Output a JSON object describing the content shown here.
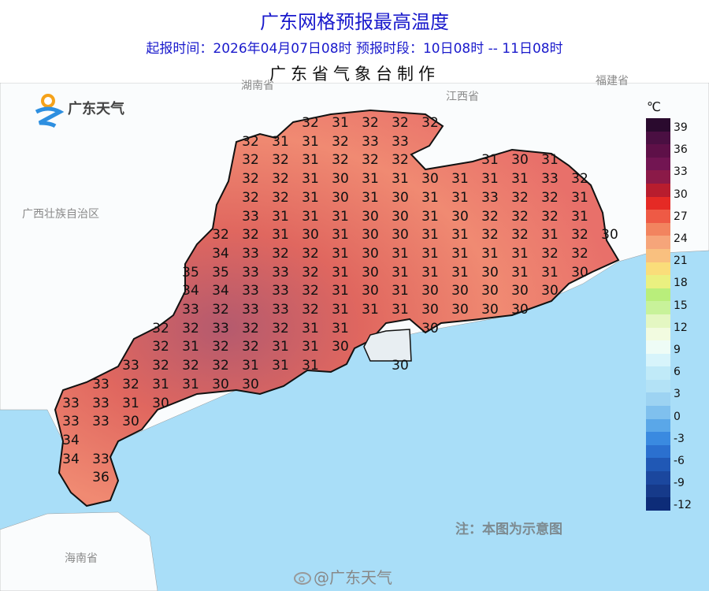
{
  "header": {
    "title": "广东网格预报最高温度",
    "subtitle": "起报时间：2026年04月07日08时   预报时段：10日08时 -- 11日08时",
    "maker": "广东省气象台制作"
  },
  "logo": {
    "text": "广东天气",
    "icon": "guangdong-weather-sun-logo"
  },
  "places": {
    "hunan": "湖南省",
    "jiangxi": "江西省",
    "fujian": "福建省",
    "guangxi": "广西壮族自治区",
    "hainan": "海南省"
  },
  "note": "注：本图为示意图",
  "watermark": "@广东天气",
  "colors": {
    "sea": "#a9def8",
    "land": "#ffffff",
    "province_low": "#f4a088",
    "province_high": "#8b4a7a",
    "title": "#1a1acc"
  },
  "legend": {
    "unit": "℃",
    "ticks": [
      "39",
      "36",
      "33",
      "30",
      "27",
      "24",
      "21",
      "18",
      "15",
      "12",
      "9",
      "6",
      "3",
      "0",
      "-3",
      "-6",
      "-9",
      "-12"
    ],
    "colors": [
      "#2a0a2e",
      "#4a0f42",
      "#5e1048",
      "#721552",
      "#8b1a48",
      "#b81d2e",
      "#e52a25",
      "#ee5a45",
      "#f2845f",
      "#f6a57a",
      "#f9c07f",
      "#fadd7a",
      "#eaf080",
      "#b9ee7b",
      "#c8f29a",
      "#e4f7c2",
      "#f2fbe0",
      "#eefcf6",
      "#d7f4fb",
      "#c0eaf8",
      "#b3e2f6",
      "#9dd3f2",
      "#7fc0ee",
      "#5aa7e8",
      "#3a8ae0",
      "#2b70cf",
      "#2058b5",
      "#1b479e",
      "#163a8a",
      "#0d2c78"
    ]
  },
  "grid": {
    "unit": "℃",
    "rows": [
      [
        null,
        null,
        null,
        null,
        null,
        null,
        null,
        null,
        32,
        31,
        32,
        32,
        32
      ],
      [
        null,
        null,
        null,
        null,
        null,
        null,
        32,
        31,
        31,
        32,
        33,
        33
      ],
      [
        null,
        null,
        null,
        null,
        null,
        null,
        32,
        32,
        31,
        32,
        32,
        32,
        null,
        null,
        31,
        30,
        31
      ],
      [
        null,
        null,
        null,
        null,
        null,
        null,
        32,
        32,
        31,
        30,
        31,
        31,
        30,
        31,
        31,
        31,
        33,
        32
      ],
      [
        null,
        null,
        null,
        null,
        null,
        null,
        32,
        32,
        31,
        30,
        31,
        30,
        31,
        31,
        33,
        32,
        32,
        31
      ],
      [
        null,
        null,
        null,
        null,
        null,
        null,
        33,
        31,
        31,
        31,
        30,
        30,
        31,
        30,
        32,
        32,
        32,
        31
      ],
      [
        null,
        null,
        null,
        null,
        null,
        32,
        32,
        31,
        30,
        31,
        30,
        30,
        31,
        31,
        32,
        32,
        31,
        32,
        30
      ],
      [
        null,
        null,
        null,
        null,
        null,
        34,
        33,
        32,
        32,
        31,
        30,
        31,
        31,
        31,
        31,
        31,
        32,
        32
      ],
      [
        null,
        null,
        null,
        null,
        35,
        35,
        33,
        33,
        32,
        31,
        30,
        31,
        31,
        31,
        30,
        31,
        31,
        30
      ],
      [
        null,
        null,
        null,
        null,
        34,
        34,
        33,
        33,
        32,
        31,
        30,
        31,
        30,
        30,
        30,
        30,
        30
      ],
      [
        null,
        null,
        null,
        null,
        33,
        32,
        33,
        33,
        32,
        31,
        31,
        31,
        30,
        30,
        30,
        30
      ],
      [
        null,
        null,
        null,
        32,
        32,
        33,
        32,
        32,
        31,
        31,
        null,
        null,
        30
      ],
      [
        null,
        null,
        null,
        32,
        31,
        32,
        32,
        31,
        31,
        30
      ],
      [
        null,
        null,
        33,
        32,
        32,
        32,
        31,
        31,
        31,
        null,
        null,
        30
      ],
      [
        null,
        33,
        32,
        31,
        31,
        30,
        30
      ],
      [
        33,
        33,
        31,
        30
      ],
      [
        33,
        33,
        30
      ],
      [
        34
      ],
      [
        34,
        33
      ],
      [
        null,
        36
      ]
    ]
  }
}
